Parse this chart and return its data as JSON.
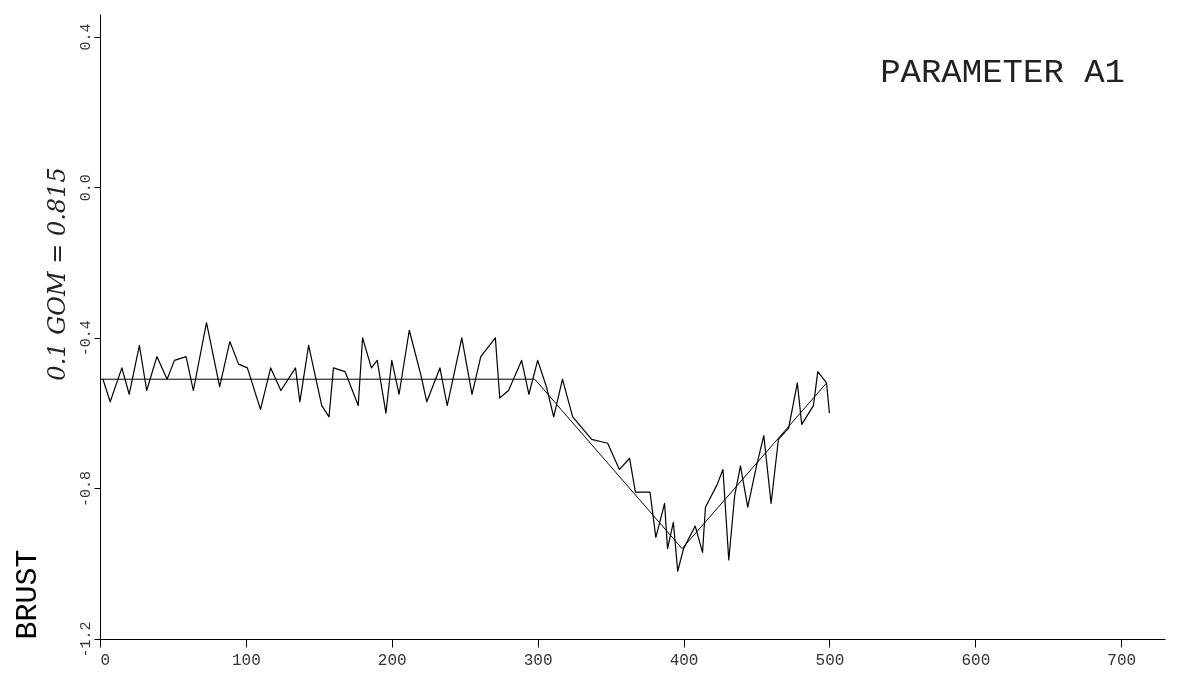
{
  "chart_data": {
    "type": "line",
    "title": "PARAMETER A1",
    "ylabel": "BRUST",
    "annotations": [
      "0.1 GOM = 0.815"
    ],
    "xlim": [
      0,
      730
    ],
    "xticks": [
      0,
      100,
      200,
      300,
      400,
      500,
      600,
      700
    ],
    "ylim": [
      -1.2,
      0.46
    ],
    "yticks": [
      {
        "value": 0.4,
        "label": "0.4"
      },
      {
        "value": 0,
        "label": "0.0"
      },
      {
        "value": -0.4,
        "label": "-0.4"
      },
      {
        "value": -0.8,
        "label": "-0.8"
      },
      {
        "value": -1.2,
        "label": "-1.2"
      }
    ],
    "marker": "none",
    "line_style": "solid",
    "series": [
      {
        "color": "#000000",
        "x": [
          2,
          7,
          15,
          20,
          27,
          32,
          39,
          46,
          51,
          59,
          64,
          73,
          82,
          89,
          95,
          101,
          110,
          117,
          124,
          134,
          137,
          143,
          152,
          157,
          160,
          168,
          177,
          180,
          186,
          190,
          196,
          200,
          205,
          212,
          220,
          224,
          233,
          238,
          248,
          255,
          261,
          271,
          274,
          280,
          289,
          294,
          300,
          306,
          311,
          317,
          324,
          337,
          348,
          356,
          363,
          367,
          377,
          381,
          387,
          389,
          393,
          396,
          400,
          408,
          413,
          415,
          423,
          427,
          431,
          435,
          439,
          444,
          450,
          455,
          460,
          465,
          472,
          478,
          481,
          489,
          492,
          498,
          500
        ],
        "values": [
          -0.51,
          -0.57,
          -0.48,
          -0.55,
          -0.42,
          -0.54,
          -0.45,
          -0.51,
          -0.46,
          -0.45,
          -0.54,
          -0.36,
          -0.53,
          -0.41,
          -0.47,
          -0.48,
          -0.59,
          -0.48,
          -0.54,
          -0.48,
          -0.57,
          -0.42,
          -0.58,
          -0.61,
          -0.48,
          -0.49,
          -0.58,
          -0.4,
          -0.48,
          -0.46,
          -0.6,
          -0.46,
          -0.55,
          -0.38,
          -0.5,
          -0.57,
          -0.48,
          -0.58,
          -0.4,
          -0.55,
          -0.45,
          -0.4,
          -0.56,
          -0.54,
          -0.46,
          -0.55,
          -0.46,
          -0.53,
          -0.61,
          -0.51,
          -0.61,
          -0.67,
          -0.68,
          -0.75,
          -0.72,
          -0.81,
          -0.81,
          -0.93,
          -0.84,
          -0.96,
          -0.89,
          -1.02,
          -0.96,
          -0.9,
          -0.97,
          -0.85,
          -0.79,
          -0.75,
          -0.99,
          -0.82,
          -0.74,
          -0.85,
          -0.74,
          -0.66,
          -0.84,
          -0.67,
          -0.64,
          -0.52,
          -0.63,
          -0.58,
          -0.49,
          -0.52,
          -0.6
        ]
      },
      {
        "type": "line",
        "color": "#000000",
        "x": [
          0,
          298,
          399,
          498
        ],
        "values": [
          -0.51,
          -0.51,
          -0.96,
          -0.52
        ]
      }
    ]
  }
}
